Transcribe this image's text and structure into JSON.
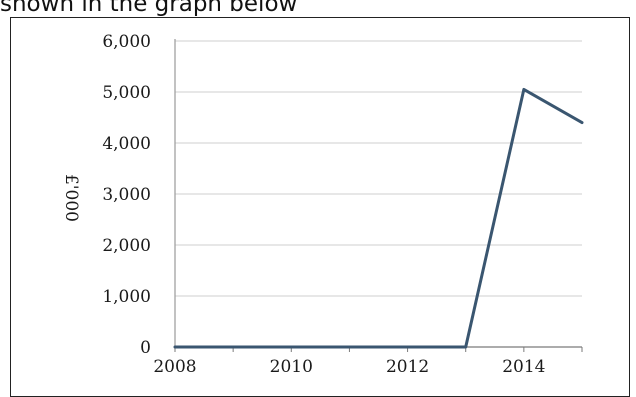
{
  "caption": "shown in the graph below",
  "chart_data": {
    "type": "line",
    "title": "",
    "xlabel": "",
    "ylabel": "£'000",
    "x": [
      2008,
      2009,
      2010,
      2011,
      2012,
      2013,
      2014,
      2015
    ],
    "series": [
      {
        "values": [
          0,
          0,
          0,
          0,
          0,
          0,
          5050,
          4400
        ]
      }
    ],
    "xticks": [
      "2008",
      "2010",
      "2012",
      "2014"
    ],
    "yticks": [
      "0",
      "1,000",
      "2,000",
      "3,000",
      "4,000",
      "5,000",
      "6,000"
    ],
    "ylim": [
      0,
      6000
    ],
    "grid": true,
    "line_color": "#3a5670"
  }
}
